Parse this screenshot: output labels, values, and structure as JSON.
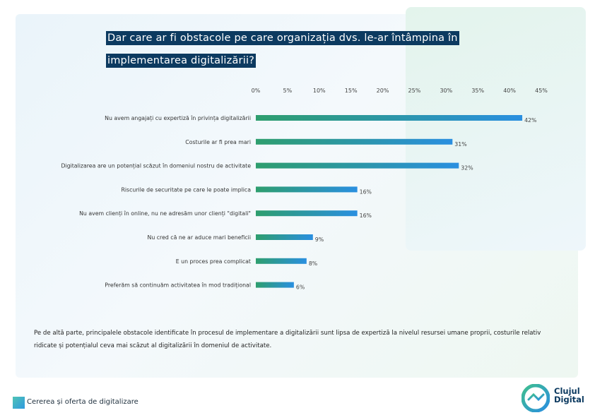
{
  "title": {
    "line1": "Dar care ar fi obstacole pe care organizația dvs. le-ar întâmpina în",
    "line2": "implementarea digitalizării?"
  },
  "chart_data": {
    "type": "bar",
    "orientation": "horizontal",
    "categories": [
      "Nu avem angajați cu expertiză în privința digitalizării",
      "Costurile ar fi prea mari",
      "Digitalizarea are un potențial scăzut în domeniul nostru de activitate",
      "Riscurile de securitate pe care le poate implica",
      "Nu avem clienți în online, nu ne adresăm unor clienți \"digitali\"",
      "Nu cred că ne ar aduce mari beneficii",
      "E un proces prea complicat",
      "Preferăm să continuăm activitatea în mod tradițional"
    ],
    "values": [
      42,
      31,
      32,
      16,
      16,
      9,
      8,
      6
    ],
    "value_labels": [
      "42%",
      "31%",
      "32%",
      "16%",
      "16%",
      "9%",
      "8%",
      "6%"
    ],
    "ticks": [
      "0%",
      "5%",
      "10%",
      "15%",
      "20%",
      "25%",
      "30%",
      "35%",
      "40%",
      "45%"
    ],
    "xlim": [
      0,
      45
    ],
    "colors": {
      "start": "#2e9e6e",
      "end": "#2a8fe0"
    }
  },
  "description": "Pe de altă parte, principalele obstacole identificate în procesul de implementare a digitalizării sunt lipsa de expertiză la nivelul resursei umane proprii, costurile relativ ridicate și potențialul ceva mai scăzut al digitalizării în domeniul de activitate.",
  "footer": {
    "label": "Cererea și oferta de digitalizare"
  },
  "logo": {
    "line1": "Clujul",
    "line2": "Digital"
  }
}
